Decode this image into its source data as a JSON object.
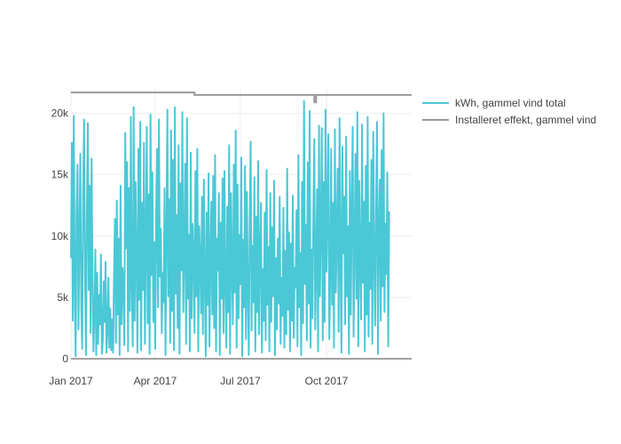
{
  "chart_data": {
    "type": "line",
    "title": "",
    "xlabel": "",
    "ylabel": "",
    "x_range": [
      "2017-01-01",
      "2017-12-31"
    ],
    "y_range": [
      0,
      22000
    ],
    "x_ticks": [
      {
        "label": "Jan 2017",
        "date": "2017-01-01"
      },
      {
        "label": "Apr 2017",
        "date": "2017-04-01"
      },
      {
        "label": "Jul 2017",
        "date": "2017-07-01"
      },
      {
        "label": "Oct 2017",
        "date": "2017-10-01"
      }
    ],
    "y_ticks": [
      {
        "label": "0",
        "value": 0
      },
      {
        "label": "5k",
        "value": 5000
      },
      {
        "label": "10k",
        "value": 10000
      },
      {
        "label": "15k",
        "value": 15000
      },
      {
        "label": "20k",
        "value": 20000
      }
    ],
    "grid": true,
    "legend_position": "top-right",
    "series": [
      {
        "name": "kWh, gammel vind total",
        "color": "#4ac8d6",
        "kind": "daily",
        "x_start": "2017-01-01",
        "values": [
          8200,
          17600,
          3100,
          19800,
          6400,
          200,
          12300,
          15800,
          2400,
          9700,
          16700,
          4100,
          800,
          13400,
          19500,
          7200,
          300,
          11800,
          19200,
          5600,
          14100,
          2100,
          16300,
          6800,
          600,
          3400,
          8900,
          300,
          7000,
          1200,
          5200,
          2800,
          8500,
          400,
          1500,
          6300,
          3000,
          7900,
          500,
          2300,
          6600,
          900,
          4100,
          700,
          3200,
          500,
          6800,
          11400,
          1300,
          12900,
          3600,
          9800,
          300,
          14100,
          2800,
          7400,
          6200,
          1100,
          18400,
          9000,
          16000,
          600,
          13900,
          3900,
          19700,
          6100,
          1000,
          20500,
          3100,
          14400,
          8000,
          500,
          17100,
          4800,
          19300,
          700,
          12700,
          5600,
          17600,
          1200,
          9100,
          18900,
          2900,
          13400,
          400,
          19900,
          6800,
          15200,
          3000,
          9500,
          800,
          11200,
          17100,
          4200,
          19500,
          6700,
          10600,
          2100,
          7000,
          4600,
          13900,
          300,
          9900,
          20300,
          5100,
          13000,
          1300,
          18600,
          3900,
          16200,
          700,
          20500,
          5300,
          11700,
          2500,
          17400,
          400,
          14300,
          7200,
          20100,
          3800,
          8600,
          15900,
          1200,
          19600,
          4900,
          10100,
          600,
          16800,
          3300,
          11000,
          8600,
          2100,
          15300,
          5100,
          17100,
          600,
          10800,
          8400,
          3700,
          13200,
          2000,
          14600,
          6600,
          200,
          11900,
          4400,
          15100,
          1000,
          8000,
          12800,
          3600,
          14900,
          2500,
          16600,
          600,
          9800,
          7200,
          13500,
          300,
          11100,
          4900,
          14700,
          2100,
          15300,
          6100,
          900,
          12400,
          3800,
          17400,
          400,
          13500,
          7800,
          2800,
          15800,
          5400,
          18600,
          900,
          14200,
          3300,
          10100,
          6100,
          16400,
          200,
          9700,
          4200,
          15700,
          1600,
          13600,
          5600,
          300,
          10900,
          17700,
          2300,
          9200,
          4600,
          14800,
          600,
          11600,
          3800,
          16100,
          2000,
          8400,
          12700,
          500,
          7300,
          3100,
          11900,
          1500,
          15400,
          4400,
          9100,
          600,
          13500,
          3000,
          10700,
          5100,
          14500,
          300,
          8200,
          2400,
          9800,
          4500,
          13200,
          1200,
          6600,
          3500,
          12300,
          900,
          8800,
          2000,
          15500,
          4000,
          10300,
          600,
          9400,
          3100,
          13300,
          1700,
          7400,
          5800,
          12100,
          1000,
          16600,
          4200,
          8600,
          300,
          14400,
          2900,
          21000,
          6100,
          10900,
          1500,
          16000,
          4500,
          20200,
          900,
          8900,
          3300,
          11900,
          17900,
          2400,
          7700,
          13800,
          600,
          19000,
          5100,
          10500,
          18800,
          1500,
          14400,
          3000,
          20300,
          7100,
          11800,
          18300,
          1600,
          6600,
          17100,
          4400,
          12700,
          900,
          18700,
          5400,
          9900,
          15500,
          2200,
          19600,
          7800,
          500,
          17300,
          8600,
          13200,
          2800,
          18100,
          5100,
          10800,
          400,
          15300,
          3600,
          12200,
          18900,
          1800,
          9000,
          16700,
          4900,
          20100,
          1000,
          14500,
          7800,
          3200,
          19100,
          6200,
          12800,
          600,
          15700,
          3600,
          19700,
          1800,
          11100,
          5700,
          16200,
          1200,
          18500,
          8400,
          2700,
          12100,
          19300,
          400,
          10700,
          14600,
          3100,
          17000,
          5900,
          20000,
          3800,
          11000,
          6900,
          15200,
          1000,
          12000
        ]
      },
      {
        "name": "Installeret effekt, gammel vind",
        "color": "#999999",
        "kind": "step",
        "segments": [
          {
            "from": "2017-01-01",
            "to": "2017-05-13",
            "value": 21700
          },
          {
            "from": "2017-05-13",
            "to": "2017-09-18",
            "value": 21500
          },
          {
            "from": "2017-09-18",
            "to": "2017-09-20",
            "value": 20900
          },
          {
            "from": "2017-09-20",
            "to": "2017-12-31",
            "value": 21500
          }
        ]
      }
    ]
  }
}
